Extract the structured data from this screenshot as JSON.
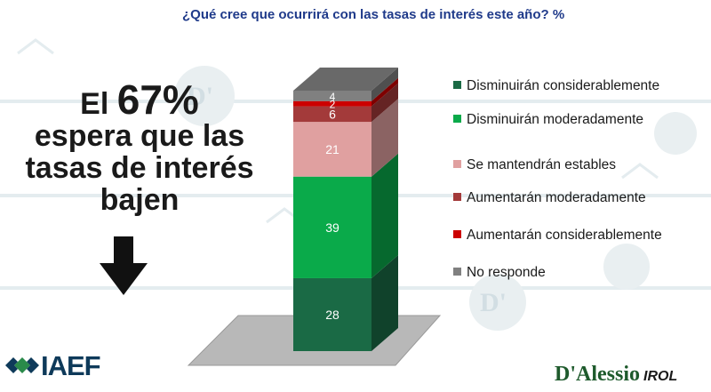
{
  "header": {
    "question": "¿Qué cree que ocurrirá con las tasas de interés este año? %"
  },
  "headline": {
    "prefix": "El",
    "highlight": "67%",
    "lines": [
      "espera que las",
      "tasas de interés",
      "bajen"
    ]
  },
  "chart_data": {
    "type": "bar",
    "stacked": true,
    "categories": [
      ""
    ],
    "series": [
      {
        "name": "Disminuirán considerablemente",
        "values": [
          28
        ],
        "color": "#1a6a45"
      },
      {
        "name": "Disminuirán moderadamente",
        "values": [
          39
        ],
        "color": "#0aaa4a"
      },
      {
        "name": "Se mantendrán estables",
        "values": [
          21
        ],
        "color": "#e0a0a0"
      },
      {
        "name": "Aumentarán moderadamente",
        "values": [
          6
        ],
        "color": "#a33a3a"
      },
      {
        "name": "Aumentarán considerablemente",
        "values": [
          2
        ],
        "color": "#cc0000"
      },
      {
        "name": "No responde",
        "values": [
          4
        ],
        "color": "#808080"
      }
    ],
    "legend_position": "right",
    "grid": false
  },
  "logos": {
    "left": "IAEF",
    "right_brand": "D'Alessio",
    "right_suffix": "IROL"
  }
}
